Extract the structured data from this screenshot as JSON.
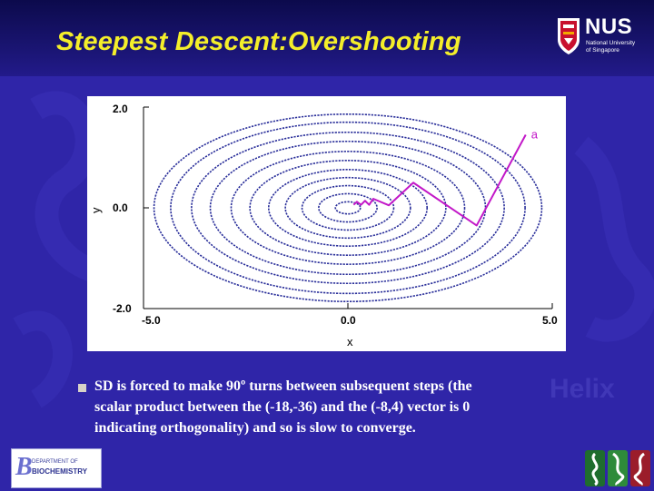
{
  "slide": {
    "title": "Steepest Descent:Overshooting"
  },
  "logo": {
    "name": "NUS",
    "subtitle_line1": "National University",
    "subtitle_line2": "of Singapore"
  },
  "diagram": {
    "x_label": "x",
    "y_label": "y",
    "x_ticks": [
      "-5.0",
      "0.0",
      "5.0"
    ],
    "y_ticks": [
      "2.0",
      "0.0",
      "-2.0"
    ],
    "point_label": "a",
    "x_range": [
      -5.0,
      5.0
    ],
    "y_range": [
      -2.0,
      2.0
    ],
    "contour_ry": [
      0.12,
      0.28,
      0.44,
      0.6,
      0.76,
      0.94,
      1.12,
      1.32,
      1.5,
      1.7,
      1.86
    ],
    "contour_aspect": 2.55,
    "path": [
      [
        4.35,
        1.45
      ],
      [
        3.15,
        -0.35
      ],
      [
        1.6,
        0.5
      ],
      [
        1.0,
        0.05
      ],
      [
        0.62,
        0.18
      ],
      [
        0.52,
        0.06
      ],
      [
        0.42,
        0.14
      ],
      [
        0.32,
        0.06
      ],
      [
        0.22,
        0.12
      ],
      [
        0.14,
        0.06
      ]
    ],
    "colors": {
      "contour": "#2a2f9a",
      "path": "#c218c8",
      "axis": "#000000"
    }
  },
  "body": {
    "lines": [
      "SD is forced to make 90º turns between subsequent steps (the",
      "scalar product between the (-18,-36) and the (-8,4) vector is 0",
      "indicating orthogonality) and so is slow to converge."
    ]
  },
  "watermark": "Helix",
  "dept_logo": {
    "line1": "DEPARTMENT OF",
    "line2": "BIOCHEMISTRY"
  }
}
